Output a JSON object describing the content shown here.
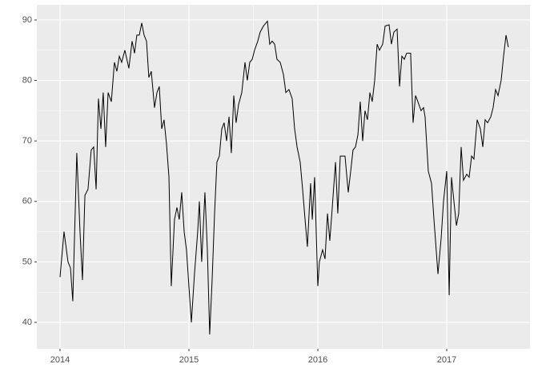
{
  "chart_data": {
    "type": "line",
    "grid": true,
    "color": "#000000",
    "x": [
      2014.0,
      2014.031,
      2014.062,
      2014.081,
      2014.099,
      2014.13,
      2014.155,
      2014.174,
      2014.193,
      2014.217,
      2014.242,
      2014.261,
      2014.28,
      2014.298,
      2014.317,
      2014.335,
      2014.354,
      2014.373,
      2014.398,
      2014.422,
      2014.441,
      2014.46,
      2014.478,
      2014.503,
      2014.534,
      2014.559,
      2014.578,
      2014.596,
      2014.615,
      2014.634,
      2014.652,
      2014.671,
      2014.689,
      2014.708,
      2014.733,
      2014.752,
      2014.77,
      2014.789,
      2014.807,
      2014.826,
      2014.845,
      2014.863,
      2014.888,
      2014.907,
      2014.925,
      2014.944,
      2014.963,
      2014.981,
      2015.006,
      2015.019,
      2015.043,
      2015.068,
      2015.081,
      2015.099,
      2015.124,
      2015.143,
      2015.161,
      2015.18,
      2015.199,
      2015.217,
      2015.236,
      2015.255,
      2015.273,
      2015.292,
      2015.311,
      2015.329,
      2015.348,
      2015.366,
      2015.385,
      2015.41,
      2015.435,
      2015.453,
      2015.472,
      2015.491,
      2015.509,
      2015.534,
      2015.553,
      2015.578,
      2015.609,
      2015.627,
      2015.646,
      2015.665,
      2015.683,
      2015.708,
      2015.733,
      2015.752,
      2015.776,
      2015.801,
      2015.82,
      2015.839,
      2015.863,
      2015.882,
      2015.901,
      2015.919,
      2015.944,
      2015.957,
      2015.975,
      2016.0,
      2016.012,
      2016.037,
      2016.056,
      2016.075,
      2016.093,
      2016.112,
      2016.137,
      2016.155,
      2016.174,
      2016.193,
      2016.211,
      2016.236,
      2016.255,
      2016.273,
      2016.292,
      2016.311,
      2016.329,
      2016.348,
      2016.366,
      2016.385,
      2016.404,
      2016.422,
      2016.441,
      2016.46,
      2016.478,
      2016.503,
      2016.522,
      2016.553,
      2016.571,
      2016.59,
      2016.615,
      2016.634,
      2016.652,
      2016.671,
      2016.689,
      2016.72,
      2016.739,
      2016.758,
      2016.776,
      2016.801,
      2016.82,
      2016.832,
      2016.857,
      2016.882,
      2016.901,
      2016.932,
      2016.957,
      2016.975,
      2017.0,
      2017.019,
      2017.037,
      2017.056,
      2017.075,
      2017.093,
      2017.112,
      2017.13,
      2017.155,
      2017.174,
      2017.193,
      2017.211,
      2017.236,
      2017.261,
      2017.28,
      2017.298,
      2017.317,
      2017.342,
      2017.36,
      2017.379,
      2017.398,
      2017.422,
      2017.441,
      2017.46,
      2017.478
    ],
    "series": [
      {
        "color": "#000000",
        "values": [
          47.5,
          55,
          50,
          49,
          43.5,
          68,
          55,
          47,
          61,
          62,
          68.5,
          69,
          62,
          77,
          72,
          78,
          69,
          78,
          76.5,
          83,
          81.5,
          84,
          83,
          85,
          82,
          86.5,
          84.5,
          87.5,
          87.5,
          89.5,
          87.5,
          86.5,
          80.5,
          81.5,
          75.5,
          78,
          79,
          72,
          73.5,
          69.5,
          64,
          46,
          57,
          59,
          57,
          61.5,
          55,
          52,
          44,
          40,
          48,
          55,
          60,
          50,
          61.5,
          52,
          38,
          47,
          58,
          66.5,
          67.5,
          72,
          73,
          70,
          74,
          68,
          77.5,
          73,
          76,
          78,
          83,
          80,
          83,
          83.5,
          85,
          86.5,
          88,
          89,
          89.8,
          86,
          86.5,
          86,
          83.5,
          83,
          81,
          78,
          78.5,
          77,
          72,
          69,
          66.5,
          62,
          57,
          52.5,
          63,
          57,
          64,
          46,
          50,
          52,
          50.5,
          58,
          53.5,
          59,
          66.5,
          58,
          67.5,
          67.5,
          67.5,
          61.5,
          65,
          68.5,
          69,
          71,
          76.5,
          70,
          75,
          73.5,
          78,
          76.5,
          80,
          86,
          85,
          86,
          89,
          89.2,
          86,
          88,
          88.5,
          79,
          84,
          83.5,
          84.5,
          84.5,
          73,
          77.5,
          76.5,
          75,
          75.5,
          74,
          65,
          63,
          57,
          48,
          54,
          60,
          65,
          44.5,
          64,
          60,
          56,
          58,
          69,
          63.5,
          64.5,
          64,
          67.5,
          67,
          73.5,
          72,
          69,
          73.5,
          73,
          74,
          75.5,
          78.5,
          77.5,
          80,
          84,
          87.5,
          85.5
        ]
      }
    ],
    "xlim": [
      2013.82,
      2017.646
    ],
    "xticks": [
      2014,
      2015,
      2016,
      2017
    ],
    "ylim": [
      35.63,
      92.51
    ],
    "yticks": [
      40,
      50,
      60,
      70,
      80,
      90
    ]
  }
}
